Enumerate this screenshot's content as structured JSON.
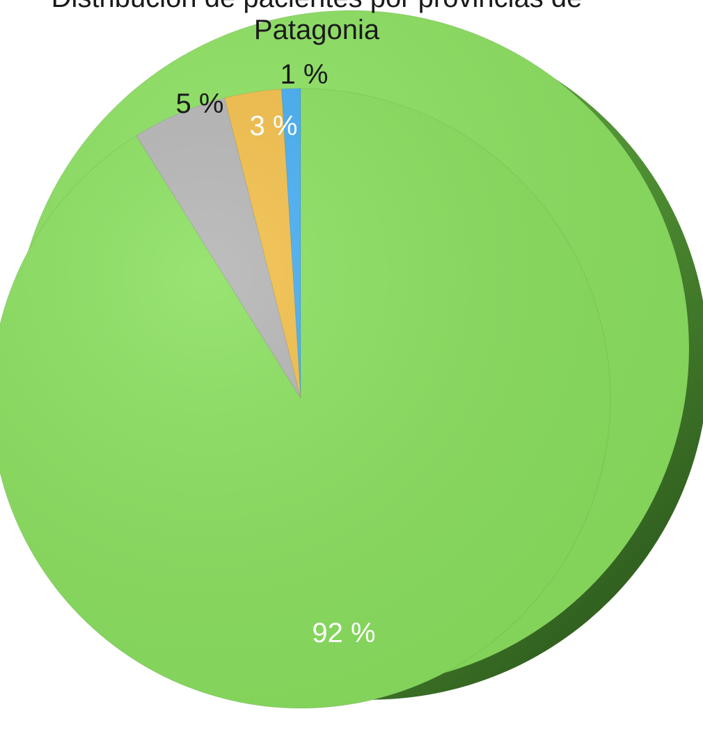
{
  "chart_data": {
    "type": "pie",
    "title_line1": "Distribución de pacientes por provincias de",
    "title_line2": "Patagonia",
    "data_labels": [
      "92 %",
      "5 %",
      "3 %",
      "1 %"
    ],
    "series": [
      {
        "name": "",
        "values": [
          {
            "value": 92,
            "label": "92 %",
            "color": "#8be060"
          },
          {
            "value": 5,
            "label": "5 %",
            "color": "#f2bf4a"
          },
          {
            "value": 3,
            "label": "3 %",
            "color": "#b5b5b5"
          },
          {
            "value": 1,
            "label": "1 %",
            "color": "#47aef3"
          }
        ]
      },
      {
        "name": "",
        "values": [
          {
            "value": 92,
            "label": "92 %",
            "color": "#8be060"
          },
          {
            "value": 5,
            "label": "5 %",
            "color": "#b5b5b5"
          },
          {
            "value": 3,
            "label": "3 %",
            "color": "#f2bf4a"
          },
          {
            "value": 1,
            "label": "1 %",
            "color": "#47aef3"
          }
        ]
      }
    ],
    "style": "3d-pie",
    "legend": "none"
  }
}
